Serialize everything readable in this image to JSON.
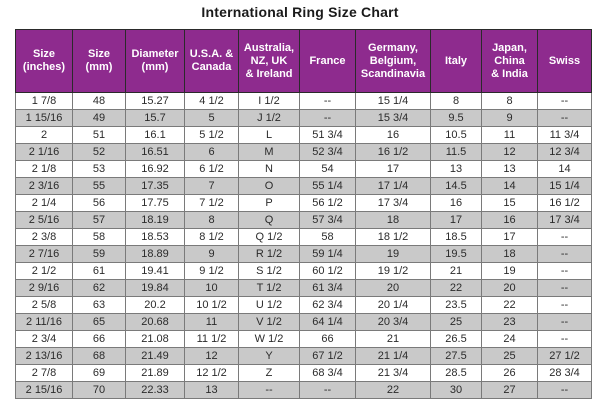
{
  "title": "International Ring Size Chart",
  "colors": {
    "header_bg": "#8e2b8e",
    "header_text": "#ffffff",
    "row_bg": "#ffffff",
    "row_alt_bg": "#c9c9c9",
    "grid_line": "#7a7a7a",
    "body_text": "#2b2b2b",
    "title_text": "#1a1a1a"
  },
  "chart_data": {
    "type": "table",
    "title": "International Ring Size Chart",
    "columns": [
      "Size\n(inches)",
      "Size\n(mm)",
      "Diameter\n(mm)",
      "U.S.A. &\nCanada",
      "Australia,\nNZ, UK\n& Ireland",
      "France",
      "Germany,\nBelgium,\nScandinavia",
      "Italy",
      "Japan,\nChina\n& India",
      "Swiss"
    ],
    "rows": [
      [
        "1 7/8",
        "48",
        "15.27",
        "4 1/2",
        "I 1/2",
        "--",
        "15 1/4",
        "8",
        "8",
        "--"
      ],
      [
        "1 15/16",
        "49",
        "15.7",
        "5",
        "J 1/2",
        "--",
        "15 3/4",
        "9.5",
        "9",
        "--"
      ],
      [
        "2",
        "51",
        "16.1",
        "5 1/2",
        "L",
        "51 3/4",
        "16",
        "10.5",
        "11",
        "11 3/4"
      ],
      [
        "2 1/16",
        "52",
        "16.51",
        "6",
        "M",
        "52 3/4",
        "16 1/2",
        "11.5",
        "12",
        "12 3/4"
      ],
      [
        "2 1/8",
        "53",
        "16.92",
        "6 1/2",
        "N",
        "54",
        "17",
        "13",
        "13",
        "14"
      ],
      [
        "2 3/16",
        "55",
        "17.35",
        "7",
        "O",
        "55 1/4",
        "17 1/4",
        "14.5",
        "14",
        "15 1/4"
      ],
      [
        "2 1/4",
        "56",
        "17.75",
        "7 1/2",
        "P",
        "56 1/2",
        "17 3/4",
        "16",
        "15",
        "16 1/2"
      ],
      [
        "2 5/16",
        "57",
        "18.19",
        "8",
        "Q",
        "57 3/4",
        "18",
        "17",
        "16",
        "17 3/4"
      ],
      [
        "2 3/8",
        "58",
        "18.53",
        "8 1/2",
        "Q 1/2",
        "58",
        "18 1/2",
        "18.5",
        "17",
        "--"
      ],
      [
        "2 7/16",
        "59",
        "18.89",
        "9",
        "R 1/2",
        "59 1/4",
        "19",
        "19.5",
        "18",
        "--"
      ],
      [
        "2 1/2",
        "61",
        "19.41",
        "9 1/2",
        "S 1/2",
        "60 1/2",
        "19 1/2",
        "21",
        "19",
        "--"
      ],
      [
        "2 9/16",
        "62",
        "19.84",
        "10",
        "T 1/2",
        "61 3/4",
        "20",
        "22",
        "20",
        "--"
      ],
      [
        "2 5/8",
        "63",
        "20.2",
        "10 1/2",
        "U 1/2",
        "62 3/4",
        "20 1/4",
        "23.5",
        "22",
        "--"
      ],
      [
        "2 11/16",
        "65",
        "20.68",
        "11",
        "V 1/2",
        "64 1/4",
        "20 3/4",
        "25",
        "23",
        "--"
      ],
      [
        "2 3/4",
        "66",
        "21.08",
        "11 1/2",
        "W 1/2",
        "66",
        "21",
        "26.5",
        "24",
        "--"
      ],
      [
        "2 13/16",
        "68",
        "21.49",
        "12",
        "Y",
        "67 1/2",
        "21 1/4",
        "27.5",
        "25",
        "27 1/2"
      ],
      [
        "2 7/8",
        "69",
        "21.89",
        "12 1/2",
        "Z",
        "68 3/4",
        "21 3/4",
        "28.5",
        "26",
        "28 3/4"
      ],
      [
        "2 15/16",
        "70",
        "22.33",
        "13",
        "--",
        "--",
        "22",
        "30",
        "27",
        "--"
      ]
    ]
  }
}
